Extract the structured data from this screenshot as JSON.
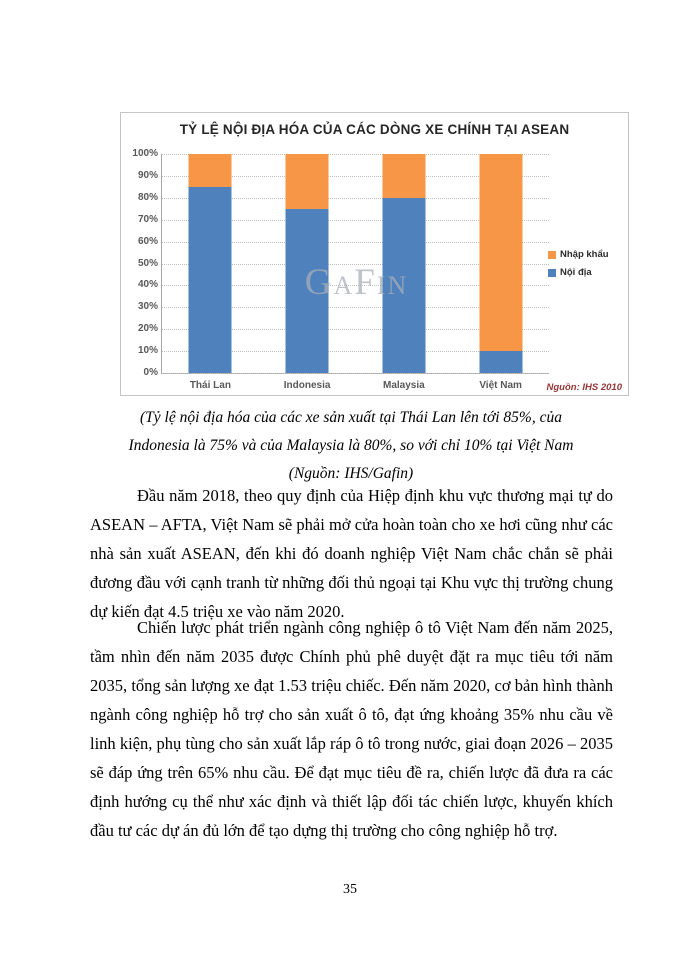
{
  "chart_data": {
    "type": "bar",
    "stacked": true,
    "title": "TỶ LỆ NỘI ĐỊA HÓA CỦA CÁC DÒNG XE CHÍNH TẠI ASEAN",
    "categories": [
      "Thái Lan",
      "Indonesia",
      "Malaysia",
      "Việt Nam"
    ],
    "series": [
      {
        "name": "Nội địa",
        "color": "#4f81bd",
        "values": [
          85,
          75,
          80,
          10
        ]
      },
      {
        "name": "Nhập khẩu",
        "color": "#f79646",
        "values": [
          15,
          25,
          20,
          90
        ]
      }
    ],
    "legend": [
      {
        "label": "Nhập khẩu",
        "color": "#f79646"
      },
      {
        "label": "Nội địa",
        "color": "#4f81bd"
      }
    ],
    "legend_position": "right",
    "y_ticks": [
      "100%",
      "90%",
      "80%",
      "70%",
      "60%",
      "50%",
      "40%",
      "30%",
      "20%",
      "10%",
      "0%"
    ],
    "ylim": [
      0,
      100
    ],
    "grid": "horizontal-dotted",
    "watermark": "GaFin",
    "source_note": "Nguồn: IHS 2010"
  },
  "caption": {
    "line1": "(Tỷ lệ nội địa hóa của các xe sản xuất tại Thái Lan lên tới 85%, của",
    "line2": "Indonesia là 75% và của Malaysia là 80%, so với chỉ 10% tại Việt Nam",
    "line3": "(Nguồn: IHS/Gafin)"
  },
  "body": {
    "paragraph1": "Đầu  năm 2018, theo quy định của Hiệp định khu vực thương mại tự do ASEAN – AFTA, Việt Nam sẽ phải mở cửa hoàn toàn cho xe hơi cũng như các nhà sản xuất ASEAN, đến khi đó doanh nghiệp Việt Nam chắc chắn sẽ phải đương đầu với cạnh tranh từ những đối thủ ngoại tại Khu vực thị trường chung dự kiến  đạt 4.5 triệu  xe vào năm 2020.",
    "paragraph2": "Chiến lược phát triển ngành công nghiệp ô tô Việt Nam đến năm 2025, tầm nhìn đến năm 2035 được Chính phủ phê duyệt đặt ra mục tiêu tới năm 2035, tổng sản lượng xe đạt 1.53 triệu chiếc. Đến năm 2020, cơ bản hình thành ngành công nghiệp hỗ trợ cho sản xuất ô tô, đạt ứng khoảng 35% nhu cầu về linh kiện, phụ tùng cho sản xuất lắp ráp ô tô trong nước, giai đoạn 2026 – 2035 sẽ đáp ứng trên 65% nhu cầu. Để đạt mục tiêu đề ra, chiến lược đã đưa ra các định hướng cụ thể như xác định và thiết lập đối tác chiến lược, khuyến khích đầu tư các dự án đủ lớn để tạo dựng thị trường cho công nghiệp hỗ trợ."
  },
  "page": {
    "number": "35"
  }
}
